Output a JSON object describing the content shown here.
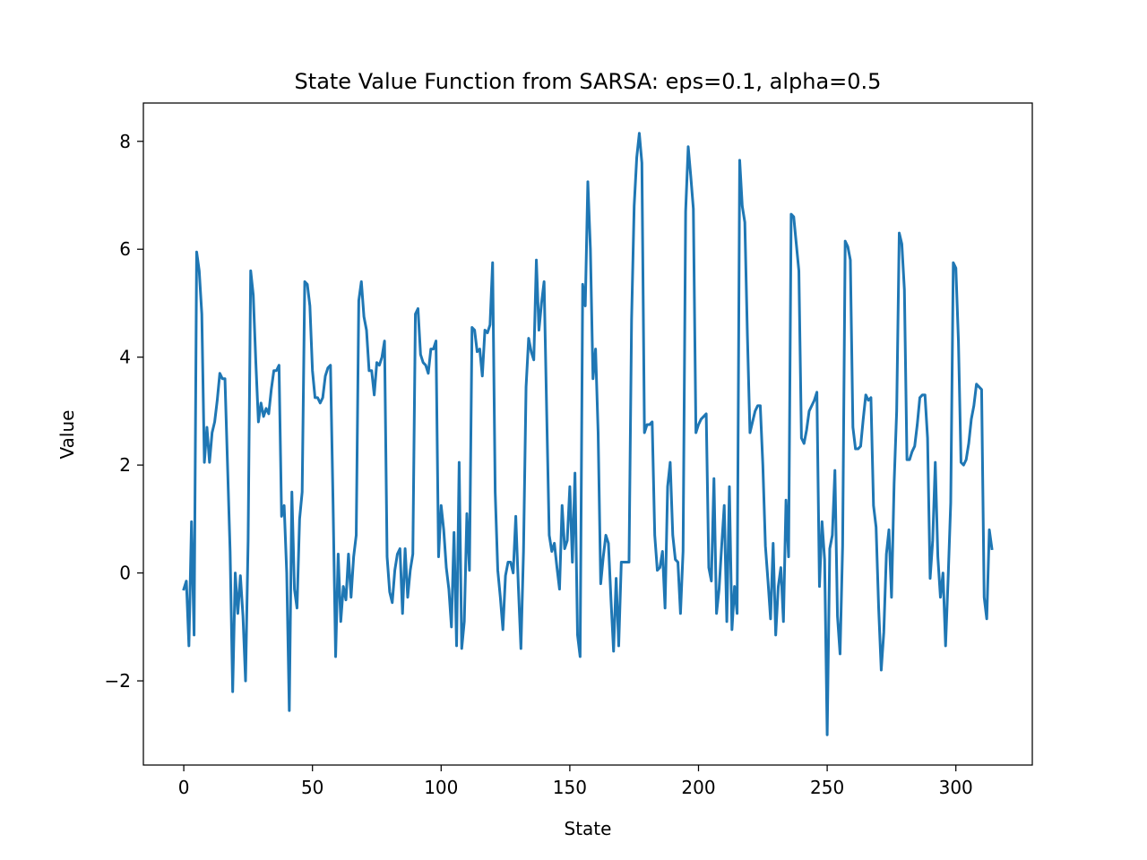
{
  "chart_data": {
    "type": "line",
    "title": "State Value Function from SARSA: eps=0.1, alpha=0.5",
    "xlabel": "State",
    "ylabel": "Value",
    "xlim": [
      -15.7,
      329.7
    ],
    "ylim": [
      -3.56,
      8.71
    ],
    "xticks": [
      0,
      50,
      100,
      150,
      200,
      250,
      300
    ],
    "yticks": [
      -2,
      0,
      2,
      4,
      6,
      8
    ],
    "grid": false,
    "legend": "none",
    "series_color": "#1f77b4",
    "x": [
      0,
      1,
      2,
      3,
      4,
      5,
      6,
      7,
      8,
      9,
      10,
      11,
      12,
      13,
      14,
      15,
      16,
      17,
      18,
      19,
      20,
      21,
      22,
      23,
      24,
      25,
      26,
      27,
      28,
      29,
      30,
      31,
      32,
      33,
      34,
      35,
      36,
      37,
      38,
      39,
      40,
      41,
      42,
      43,
      44,
      45,
      46,
      47,
      48,
      49,
      50,
      51,
      52,
      53,
      54,
      55,
      56,
      57,
      58,
      59,
      60,
      61,
      62,
      63,
      64,
      65,
      66,
      67,
      68,
      69,
      70,
      71,
      72,
      73,
      74,
      75,
      76,
      77,
      78,
      79,
      80,
      81,
      82,
      83,
      84,
      85,
      86,
      87,
      88,
      89,
      90,
      91,
      92,
      93,
      94,
      95,
      96,
      97,
      98,
      99,
      100,
      101,
      102,
      103,
      104,
      105,
      106,
      107,
      108,
      109,
      110,
      111,
      112,
      113,
      114,
      115,
      116,
      117,
      118,
      119,
      120,
      121,
      122,
      123,
      124,
      125,
      126,
      127,
      128,
      129,
      130,
      131,
      132,
      133,
      134,
      135,
      136,
      137,
      138,
      139,
      140,
      141,
      142,
      143,
      144,
      145,
      146,
      147,
      148,
      149,
      150,
      151,
      152,
      153,
      154,
      155,
      156,
      157,
      158,
      159,
      160,
      161,
      162,
      163,
      164,
      165,
      166,
      167,
      168,
      169,
      170,
      171,
      172,
      173,
      174,
      175,
      176,
      177,
      178,
      179,
      180,
      181,
      182,
      183,
      184,
      185,
      186,
      187,
      188,
      189,
      190,
      191,
      192,
      193,
      194,
      195,
      196,
      197,
      198,
      199,
      200,
      201,
      202,
      203,
      204,
      205,
      206,
      207,
      208,
      209,
      210,
      211,
      212,
      213,
      214,
      215,
      216,
      217,
      218,
      219,
      220,
      221,
      222,
      223,
      224,
      225,
      226,
      227,
      228,
      229,
      230,
      231,
      232,
      233,
      234,
      235,
      236,
      237,
      238,
      239,
      240,
      241,
      242,
      243,
      244,
      245,
      246,
      247,
      248,
      249,
      250,
      251,
      252,
      253,
      254,
      255,
      256,
      257,
      258,
      259,
      260,
      261,
      262,
      263,
      264,
      265,
      266,
      267,
      268,
      269,
      270,
      271,
      272,
      273,
      274,
      275,
      276,
      277,
      278,
      279,
      280,
      281,
      282,
      283,
      284,
      285,
      286,
      287,
      288,
      289,
      290,
      291,
      292,
      293,
      294,
      295,
      296,
      297,
      298,
      299,
      300,
      301,
      302,
      303,
      304,
      305,
      306,
      307,
      308,
      309,
      310,
      311,
      312,
      313,
      314
    ],
    "y": [
      -0.3,
      -0.15,
      -1.35,
      0.95,
      -1.15,
      5.95,
      5.6,
      4.8,
      2.05,
      2.7,
      2.05,
      2.6,
      2.8,
      3.2,
      3.7,
      3.6,
      3.6,
      2.0,
      0.4,
      -2.2,
      0.0,
      -0.75,
      -0.05,
      -0.8,
      -2.0,
      0.6,
      5.6,
      5.15,
      3.9,
      2.8,
      3.15,
      2.9,
      3.05,
      2.95,
      3.4,
      3.75,
      3.75,
      3.85,
      1.05,
      1.25,
      0.0,
      -2.55,
      1.5,
      -0.3,
      -0.65,
      1.0,
      1.5,
      5.4,
      5.35,
      4.95,
      3.75,
      3.25,
      3.25,
      3.15,
      3.25,
      3.65,
      3.8,
      3.85,
      1.3,
      -1.55,
      0.35,
      -0.9,
      -0.25,
      -0.5,
      0.35,
      -0.45,
      0.3,
      0.7,
      5.05,
      5.4,
      4.75,
      4.5,
      3.75,
      3.75,
      3.3,
      3.9,
      3.85,
      4.0,
      4.3,
      0.3,
      -0.35,
      -0.55,
      0.05,
      0.35,
      0.45,
      -0.75,
      0.45,
      -0.45,
      0.05,
      0.35,
      4.8,
      4.9,
      4.05,
      3.9,
      3.85,
      3.7,
      4.15,
      4.15,
      4.3,
      0.3,
      1.25,
      0.8,
      0.1,
      -0.3,
      -1.0,
      0.75,
      -1.35,
      2.05,
      -1.4,
      -0.9,
      1.1,
      0.05,
      4.55,
      4.5,
      4.1,
      4.15,
      3.65,
      4.5,
      4.45,
      4.6,
      5.75,
      1.5,
      0.05,
      -0.45,
      -1.05,
      -0.05,
      0.2,
      0.2,
      0.0,
      1.05,
      -0.25,
      -1.4,
      0.4,
      3.45,
      4.35,
      4.1,
      3.95,
      5.8,
      4.5,
      5.0,
      5.4,
      3.0,
      0.7,
      0.4,
      0.55,
      0.1,
      -0.3,
      1.25,
      0.45,
      0.6,
      1.6,
      0.2,
      1.85,
      -1.15,
      -1.55,
      5.35,
      4.95,
      7.25,
      6.0,
      3.6,
      4.15,
      2.6,
      -0.2,
      0.3,
      0.7,
      0.55,
      -0.5,
      -1.45,
      -0.1,
      -1.35,
      0.2,
      0.2,
      0.2,
      0.2,
      4.7,
      6.8,
      7.7,
      8.15,
      7.6,
      2.6,
      2.75,
      2.75,
      2.8,
      0.7,
      0.05,
      0.1,
      0.4,
      -0.65,
      1.6,
      2.05,
      0.7,
      0.25,
      0.2,
      -0.75,
      0.4,
      6.7,
      7.9,
      7.35,
      6.75,
      2.6,
      2.75,
      2.85,
      2.9,
      2.95,
      0.1,
      -0.15,
      1.75,
      -0.75,
      -0.3,
      0.5,
      1.25,
      -0.9,
      1.6,
      -1.05,
      -0.25,
      -0.75,
      7.65,
      6.8,
      6.5,
      4.4,
      2.6,
      2.8,
      3.0,
      3.1,
      3.1,
      2.0,
      0.5,
      -0.15,
      -0.85,
      0.55,
      -1.15,
      -0.25,
      0.1,
      -0.9,
      1.35,
      0.3,
      6.65,
      6.6,
      6.1,
      5.6,
      2.5,
      2.4,
      2.65,
      3.0,
      3.1,
      3.2,
      3.35,
      -0.25,
      0.95,
      0.25,
      -3.0,
      0.45,
      0.7,
      1.9,
      -0.8,
      -1.5,
      0.5,
      6.15,
      6.05,
      5.8,
      2.7,
      2.3,
      2.3,
      2.35,
      2.85,
      3.3,
      3.2,
      3.25,
      1.25,
      0.85,
      -0.65,
      -1.8,
      -1.1,
      0.35,
      0.8,
      -0.45,
      1.65,
      3.0,
      6.3,
      6.1,
      5.25,
      2.1,
      2.1,
      2.25,
      2.35,
      2.75,
      3.25,
      3.3,
      3.3,
      2.5,
      -0.1,
      0.6,
      2.05,
      0.3,
      -0.45,
      0.0,
      -1.35,
      -0.1,
      1.3,
      5.75,
      5.65,
      4.3,
      2.05,
      2.0,
      2.1,
      2.4,
      2.85,
      3.1,
      3.5,
      3.45,
      3.4,
      -0.45,
      -0.85,
      0.8,
      0.45
    ]
  }
}
